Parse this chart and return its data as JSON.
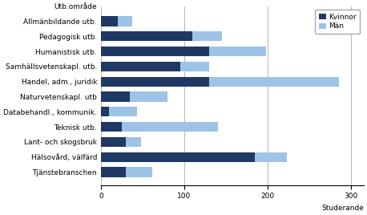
{
  "categories": [
    "Utb.område",
    "Allmänbildande utb.",
    "Pedagogisk utb.",
    "Humanistisk utb.",
    "Samhällsvetenskapl. utb.",
    "Handel, adm., juridik",
    "Naturvetenskapl. utb",
    "Databehandl., kommunik.",
    "Teknisk utb.",
    "Lant- och skogsbruk",
    "Hälsovård, välfärd",
    "Tjänstebranschen"
  ],
  "kvinnor": [
    0,
    20,
    110,
    130,
    95,
    130,
    35,
    10,
    25,
    30,
    185,
    30
  ],
  "man": [
    0,
    18,
    35,
    68,
    35,
    155,
    45,
    33,
    115,
    18,
    38,
    32
  ],
  "color_kvinnor": "#1f3864",
  "color_man": "#9dc3e6",
  "xlabel": "Studerande",
  "legend_labels": [
    "Kvinnor",
    "Män"
  ],
  "xlim": [
    0,
    315
  ],
  "xticks": [
    0,
    100,
    200,
    300
  ],
  "grid_color": "#999999",
  "figsize": [
    4.58,
    2.68
  ],
  "dpi": 100,
  "bar_height": 0.65,
  "label_fontsize": 6.5,
  "tick_fontsize": 6.5
}
